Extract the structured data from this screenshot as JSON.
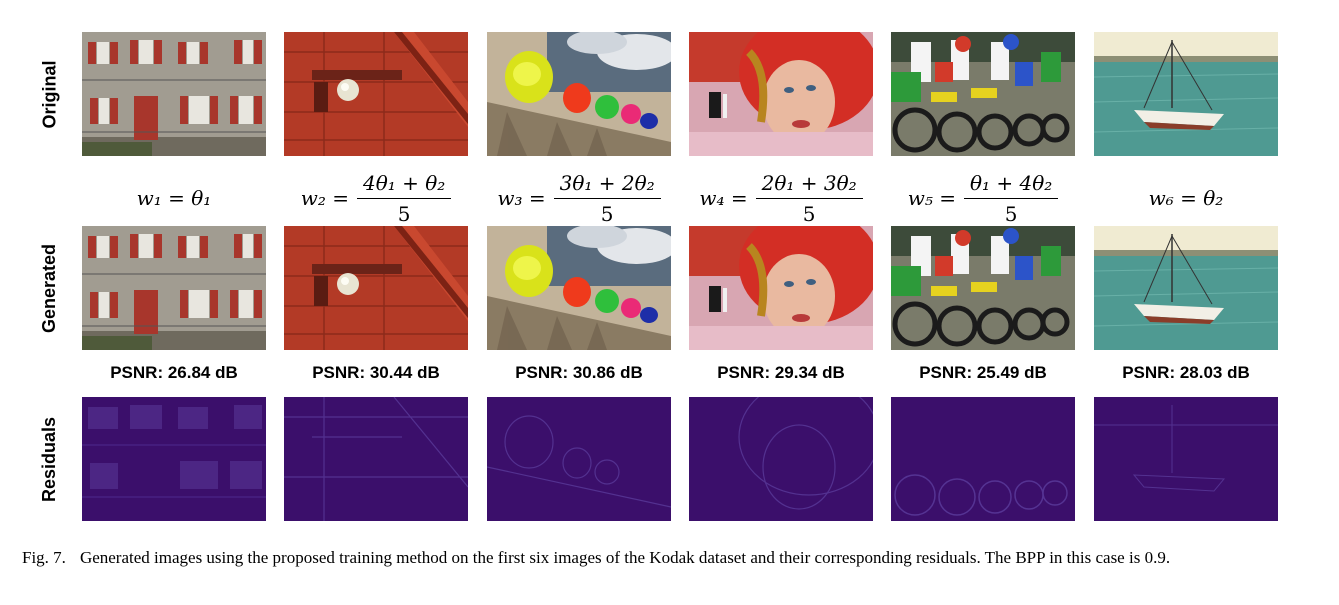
{
  "rows": [
    {
      "label": "Original"
    },
    {
      "label": "Generated"
    },
    {
      "label": "Residuals"
    }
  ],
  "images": [
    {
      "name": "houses",
      "lhs": "w₁ = θ₁",
      "num": "",
      "den": "",
      "psnr": "PSNR: 26.84 dB"
    },
    {
      "name": "red-door",
      "lhs": "w₂ =",
      "num": "4θ₁ + θ₂",
      "den": "5",
      "psnr": "PSNR: 30.44 dB"
    },
    {
      "name": "hats",
      "lhs": "w₃ =",
      "num": "3θ₁ + 2θ₂",
      "den": "5",
      "psnr": "PSNR: 30.86 dB"
    },
    {
      "name": "girl-red-hat",
      "lhs": "w₄ =",
      "num": "2θ₁ + 3θ₂",
      "den": "5",
      "psnr": "PSNR: 29.34 dB"
    },
    {
      "name": "motocross",
      "lhs": "w₅ =",
      "num": "θ₁ + 4θ₂",
      "den": "5",
      "psnr": "PSNR: 25.49 dB"
    },
    {
      "name": "sailboat",
      "lhs": "w₆ = θ₂",
      "num": "",
      "den": "",
      "psnr": "PSNR: 28.03 dB"
    }
  ],
  "caption": {
    "fig": "Fig. 7.",
    "text": "Generated images using the proposed training method on the first six images of the Kodak dataset and their corresponding residuals. The BPP in this case is 0.9."
  },
  "colors": {
    "residual_bg": "#3b0f6b",
    "brick_red": "#b33a26",
    "sea": "#4f9a92"
  }
}
